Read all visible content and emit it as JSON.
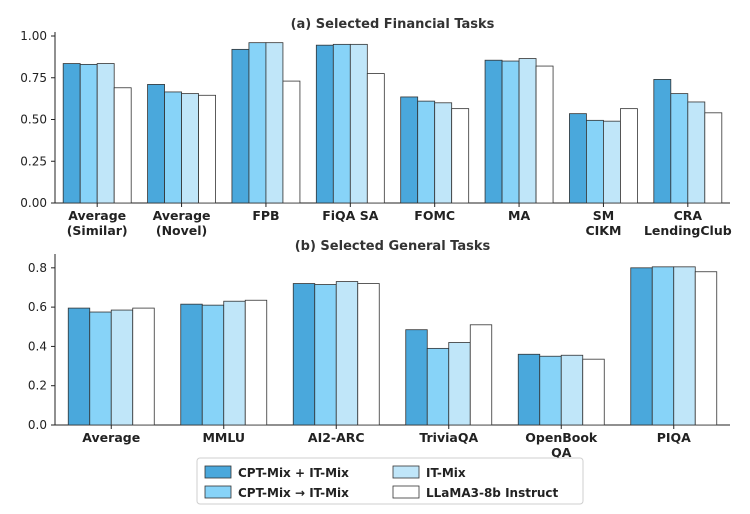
{
  "chart_data": [
    {
      "type": "bar",
      "title": "(a) Selected Financial Tasks",
      "categories": [
        "Average\n(Similar)",
        "Average\n(Novel)",
        "FPB",
        "FiQA SA",
        "FOMC",
        "MA",
        "SM\nCIKM",
        "CRA\nLendingClub"
      ],
      "ylim": [
        0,
        1.0
      ],
      "yticks": [
        "0.00",
        "0.25",
        "0.50",
        "0.75",
        "1.00"
      ],
      "grid": false,
      "series": [
        {
          "name": "CPT-Mix + IT-Mix",
          "color": "#4aa8dc",
          "values": [
            0.835,
            0.71,
            0.92,
            0.945,
            0.635,
            0.855,
            0.535,
            0.74
          ]
        },
        {
          "name": "CPT-Mix → IT-Mix",
          "color": "#87d3f8",
          "values": [
            0.83,
            0.665,
            0.96,
            0.95,
            0.61,
            0.85,
            0.495,
            0.655
          ]
        },
        {
          "name": "IT-Mix",
          "color": "#c0e6f9",
          "values": [
            0.835,
            0.655,
            0.96,
            0.95,
            0.6,
            0.865,
            0.49,
            0.605
          ]
        },
        {
          "name": "LLaMA3-8b Instruct",
          "color": "#ffffff",
          "values": [
            0.69,
            0.645,
            0.73,
            0.775,
            0.565,
            0.82,
            0.565,
            0.54
          ]
        }
      ]
    },
    {
      "type": "bar",
      "title": "(b) Selected General Tasks",
      "categories": [
        "Average",
        "MMLU",
        "AI2-ARC",
        "TriviaQA",
        "OpenBook\nQA",
        "PIQA"
      ],
      "ylim": [
        0,
        0.85
      ],
      "yticks": [
        "0.0",
        "0.2",
        "0.4",
        "0.6",
        "0.8"
      ],
      "grid": false,
      "series": [
        {
          "name": "CPT-Mix + IT-Mix",
          "color": "#4aa8dc",
          "values": [
            0.595,
            0.615,
            0.72,
            0.485,
            0.36,
            0.8
          ]
        },
        {
          "name": "CPT-Mix → IT-Mix",
          "color": "#87d3f8",
          "values": [
            0.575,
            0.61,
            0.715,
            0.39,
            0.35,
            0.805
          ]
        },
        {
          "name": "IT-Mix",
          "color": "#c0e6f9",
          "values": [
            0.585,
            0.63,
            0.73,
            0.42,
            0.355,
            0.805
          ]
        },
        {
          "name": "LLaMA3-8b Instruct",
          "color": "#ffffff",
          "values": [
            0.595,
            0.635,
            0.72,
            0.51,
            0.335,
            0.78
          ]
        }
      ]
    }
  ],
  "legend": {
    "placement": "bottom-center",
    "items": [
      {
        "label": "CPT-Mix + IT-Mix",
        "color": "#4aa8dc"
      },
      {
        "label": "IT-Mix",
        "color": "#c0e6f9"
      },
      {
        "label": "CPT-Mix → IT-Mix",
        "color": "#87d3f8"
      },
      {
        "label": "LLaMA3-8b Instruct",
        "color": "#ffffff"
      }
    ]
  }
}
